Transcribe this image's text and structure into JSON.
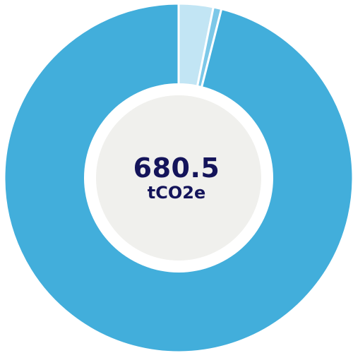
{
  "chart_data": {
    "type": "pie",
    "variant": "donut",
    "center_value": "680.5",
    "center_unit": "tCO2e",
    "slices": [
      {
        "value": 21.8,
        "color": "#c2e5f4"
      },
      {
        "value": 5.1,
        "color": "#7cc8e8"
      },
      {
        "value": 653.6,
        "color": "#42aedb"
      }
    ],
    "center_fill": "#f0f0ed",
    "center_ring": "#ffffff",
    "start_angle_deg": 0,
    "direction": "clockwise"
  }
}
